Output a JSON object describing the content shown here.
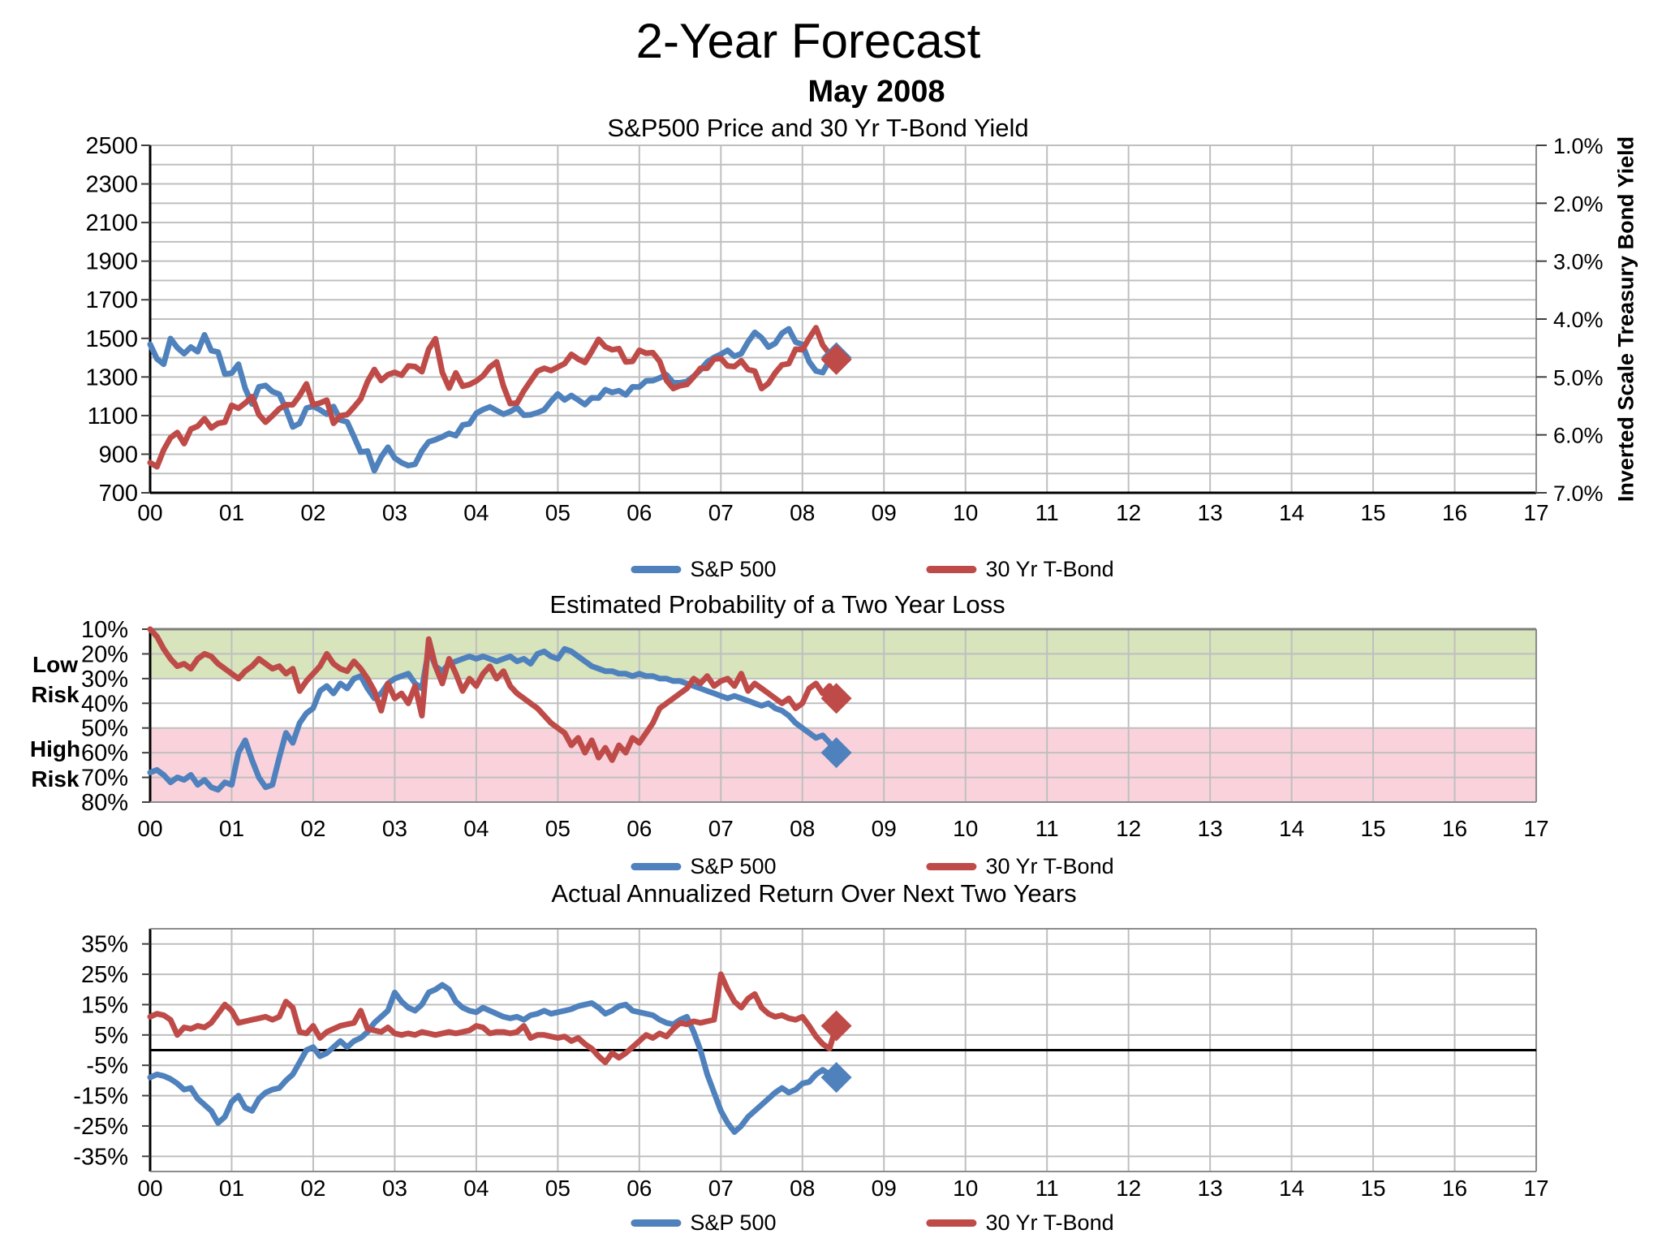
{
  "page": {
    "title": "2-Year Forecast",
    "subtitle": "May 2008"
  },
  "colors": {
    "sp500": "#4F81BD",
    "tbond": "#BE4B48",
    "low_risk_band": "#D7E4BC",
    "high_risk_band": "#F9D2DC",
    "grid": "#BFBFBF",
    "border": "#8C8C8C",
    "axis": "#000000"
  },
  "legend": {
    "items": [
      {
        "label": "S&P 500",
        "color_key": "sp500"
      },
      {
        "label": "30 Yr T-Bond",
        "color_key": "tbond"
      }
    ]
  },
  "chart_data": [
    {
      "type": "line",
      "title": "S&P500 Price and 30 Yr T-Bond Yield",
      "x_start": 0,
      "x_step": 0.08333,
      "axes": {
        "left_labels": [
          "2500",
          "2300",
          "2100",
          "1900",
          "1700",
          "1500",
          "1300",
          "1100",
          "900",
          "700"
        ],
        "left_values": [
          2500,
          2300,
          2100,
          1900,
          1700,
          1500,
          1300,
          1100,
          900,
          700
        ],
        "left_range": [
          700,
          2500
        ],
        "right_title": "Inverted Scale Treasury Bond Yield",
        "right_labels": [
          "1.0%",
          "2.0%",
          "3.0%",
          "4.0%",
          "5.0%",
          "6.0%",
          "7.0%"
        ],
        "right_values": [
          1,
          2,
          3,
          4,
          5,
          6,
          7
        ],
        "right_range": [
          7.0,
          1.0
        ],
        "x_labels": [
          "00",
          "01",
          "02",
          "03",
          "04",
          "05",
          "06",
          "07",
          "08",
          "09",
          "10",
          "11",
          "12",
          "13",
          "14",
          "15",
          "16",
          "17"
        ]
      },
      "series": [
        {
          "name": "S&P 500",
          "color_key": "sp500",
          "axis": "left",
          "marker_end": true,
          "values": [
            1469,
            1394,
            1366,
            1499,
            1452,
            1421,
            1455,
            1431,
            1518,
            1437,
            1429,
            1315,
            1320,
            1366,
            1240,
            1160,
            1249,
            1256,
            1224,
            1211,
            1134,
            1041,
            1060,
            1139,
            1148,
            1130,
            1107,
            1147,
            1077,
            1067,
            990,
            911,
            916,
            815,
            886,
            936,
            880,
            856,
            841,
            848,
            917,
            964,
            975,
            990,
            1008,
            996,
            1051,
            1058,
            1112,
            1131,
            1145,
            1126,
            1107,
            1121,
            1141,
            1102,
            1104,
            1115,
            1130,
            1174,
            1212,
            1181,
            1204,
            1181,
            1157,
            1192,
            1191,
            1234,
            1220,
            1229,
            1207,
            1249,
            1248,
            1280,
            1281,
            1295,
            1311,
            1270,
            1270,
            1277,
            1304,
            1336,
            1378,
            1401,
            1418,
            1438,
            1407,
            1421,
            1482,
            1531,
            1503,
            1455,
            1474,
            1527,
            1549,
            1481,
            1468,
            1379,
            1331,
            1323,
            1386,
            1400
          ]
        },
        {
          "name": "30 Yr T-Bond",
          "color_key": "tbond",
          "axis": "right",
          "marker_end": true,
          "values": [
            6.48,
            6.55,
            6.26,
            6.05,
            5.96,
            6.15,
            5.9,
            5.85,
            5.72,
            5.88,
            5.8,
            5.78,
            5.49,
            5.54,
            5.45,
            5.34,
            5.65,
            5.78,
            5.67,
            5.55,
            5.48,
            5.48,
            5.32,
            5.12,
            5.48,
            5.45,
            5.4,
            5.8,
            5.67,
            5.65,
            5.52,
            5.38,
            5.08,
            4.87,
            5.06,
            4.96,
            4.92,
            4.97,
            4.81,
            4.82,
            4.91,
            4.52,
            4.34,
            4.92,
            5.19,
            4.93,
            5.16,
            5.13,
            5.07,
            4.98,
            4.83,
            4.74,
            5.16,
            5.46,
            5.45,
            5.24,
            5.07,
            4.9,
            4.85,
            4.89,
            4.83,
            4.77,
            4.61,
            4.69,
            4.75,
            4.56,
            4.35,
            4.48,
            4.53,
            4.51,
            4.74,
            4.73,
            4.54,
            4.59,
            4.58,
            4.73,
            5.06,
            5.2,
            5.15,
            5.13,
            5.0,
            4.85,
            4.85,
            4.69,
            4.68,
            4.81,
            4.82,
            4.72,
            4.87,
            4.9,
            5.2,
            5.11,
            4.93,
            4.79,
            4.77,
            4.52,
            4.53,
            4.33,
            4.15,
            4.45,
            4.6,
            4.7
          ]
        }
      ]
    },
    {
      "type": "line",
      "title": "Estimated Probability of a Two Year Loss",
      "x_start": 0,
      "x_step": 0.08333,
      "axes": {
        "y_labels": [
          "10%",
          "20%",
          "30%",
          "40%",
          "50%",
          "60%",
          "70%",
          "80%"
        ],
        "y_values": [
          10,
          20,
          30,
          40,
          50,
          60,
          70,
          80
        ],
        "y_range": [
          10,
          80
        ],
        "x_labels": [
          "00",
          "01",
          "02",
          "03",
          "04",
          "05",
          "06",
          "07",
          "08",
          "09",
          "10",
          "11",
          "12",
          "13",
          "14",
          "15",
          "16",
          "17"
        ]
      },
      "bands": [
        {
          "label": "Low Risk",
          "from": 10,
          "to": 30,
          "color_key": "low_risk_band"
        },
        {
          "label": "High Risk",
          "from": 50,
          "to": 80,
          "color_key": "high_risk_band"
        }
      ],
      "series": [
        {
          "name": "S&P 500",
          "color_key": "sp500",
          "axis": "left",
          "marker_end": true,
          "values": [
            68,
            67,
            69,
            72,
            70,
            71,
            69,
            73,
            71,
            74,
            75,
            72,
            73,
            60,
            55,
            63,
            70,
            74,
            73,
            62,
            52,
            56,
            48,
            44,
            42,
            35,
            33,
            36,
            32,
            34,
            30,
            29,
            34,
            38,
            36,
            32,
            30,
            29,
            28,
            32,
            34,
            18,
            25,
            27,
            24,
            23,
            22,
            21,
            22,
            21,
            22,
            23,
            22,
            21,
            23,
            22,
            24,
            20,
            19,
            21,
            22,
            18,
            19,
            21,
            23,
            25,
            26,
            27,
            27,
            28,
            28,
            29,
            28,
            29,
            29,
            30,
            30,
            31,
            31,
            32,
            33,
            34,
            35,
            36,
            37,
            38,
            37,
            38,
            39,
            40,
            41,
            40,
            42,
            43,
            45,
            48,
            50,
            52,
            54,
            53,
            56,
            60
          ]
        },
        {
          "name": "30 Yr T-Bond",
          "color_key": "tbond",
          "axis": "left",
          "marker_end": true,
          "values": [
            10,
            13,
            18,
            22,
            25,
            24,
            26,
            22,
            20,
            21,
            24,
            26,
            28,
            30,
            27,
            25,
            22,
            24,
            26,
            25,
            28,
            26,
            35,
            31,
            28,
            25,
            20,
            24,
            26,
            27,
            23,
            26,
            30,
            35,
            43,
            32,
            38,
            36,
            40,
            33,
            45,
            14,
            25,
            32,
            22,
            28,
            35,
            30,
            33,
            28,
            25,
            30,
            27,
            33,
            36,
            38,
            40,
            42,
            45,
            48,
            50,
            52,
            57,
            54,
            60,
            55,
            62,
            58,
            63,
            57,
            60,
            54,
            56,
            52,
            48,
            42,
            40,
            38,
            36,
            34,
            30,
            32,
            29,
            33,
            31,
            30,
            33,
            28,
            35,
            32,
            34,
            36,
            38,
            40,
            38,
            42,
            40,
            34,
            32,
            36,
            33,
            38
          ]
        }
      ]
    },
    {
      "type": "line",
      "title": "Actual Annualized Return Over Next Two Years",
      "x_start": 0,
      "x_step": 0.08333,
      "axes": {
        "y_labels": [
          "35%",
          "25%",
          "15%",
          "5%",
          "-5%",
          "-15%",
          "-25%",
          "-35%"
        ],
        "y_values": [
          35,
          25,
          15,
          5,
          -5,
          -15,
          -25,
          -35
        ],
        "y_range": [
          -40,
          40
        ],
        "zero_line": true,
        "x_labels": [
          "00",
          "01",
          "02",
          "03",
          "04",
          "05",
          "06",
          "07",
          "08",
          "09",
          "10",
          "11",
          "12",
          "13",
          "14",
          "15",
          "16",
          "17"
        ]
      },
      "series": [
        {
          "name": "S&P 500",
          "color_key": "sp500",
          "axis": "left",
          "marker_end": true,
          "values": [
            -9,
            -8,
            -8.5,
            -9.5,
            -11,
            -13,
            -12.5,
            -16,
            -18,
            -20,
            -24,
            -22,
            -17,
            -15,
            -19,
            -20,
            -16,
            -14,
            -13,
            -12.5,
            -10,
            -8,
            -4,
            0,
            1,
            -2,
            -1,
            1,
            3,
            1,
            3,
            4,
            6,
            9,
            11,
            13,
            19,
            16,
            14,
            13,
            15,
            19,
            20,
            21.5,
            20,
            16,
            14,
            13,
            12.5,
            14,
            13,
            12,
            11,
            10.5,
            11,
            10,
            11.5,
            12,
            13,
            12,
            12.5,
            13,
            13.5,
            14.5,
            15,
            15.5,
            14,
            12,
            13,
            14.5,
            15,
            13,
            12.5,
            12,
            11.5,
            10,
            9,
            8.5,
            10,
            11,
            6,
            0,
            -8,
            -14,
            -20,
            -24,
            -27,
            -25,
            -22,
            -20,
            -18,
            -16,
            -14,
            -12.5,
            -14,
            -13,
            -11,
            -10.5,
            -8,
            -6.5,
            -8,
            -9
          ]
        },
        {
          "name": "30 Yr T-Bond",
          "color_key": "tbond",
          "axis": "left",
          "marker_end": true,
          "values": [
            11,
            12,
            11.5,
            10,
            5,
            7.5,
            7,
            8,
            7.5,
            9,
            12,
            15,
            13,
            9,
            9.5,
            10,
            10.5,
            11,
            10,
            11,
            16,
            14,
            6,
            5.5,
            8,
            4,
            6,
            7,
            8,
            8.5,
            9,
            13,
            7,
            6.5,
            6,
            7.5,
            5.5,
            5,
            5.5,
            5,
            6,
            5.5,
            5,
            5.5,
            6,
            5.5,
            6,
            6.5,
            8,
            7.5,
            5.5,
            6,
            6,
            5.5,
            6,
            8,
            4,
            5,
            5,
            4.5,
            4,
            4.5,
            3,
            4,
            2,
            0.5,
            -2,
            -4,
            -1,
            -2.5,
            -1,
            1,
            3,
            5,
            4,
            5.5,
            4.5,
            7,
            9,
            8.5,
            9.5,
            9,
            9.5,
            10,
            25,
            20,
            16,
            14,
            17,
            18.5,
            14,
            12,
            11,
            11.5,
            10.5,
            10,
            11,
            8,
            4.5,
            2,
            0.5,
            8
          ]
        }
      ]
    }
  ]
}
